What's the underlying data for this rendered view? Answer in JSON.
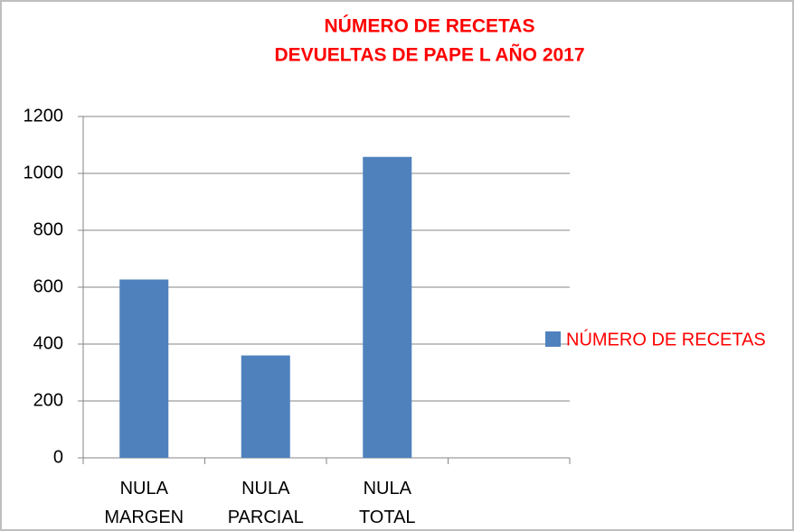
{
  "chart_data": {
    "type": "bar",
    "title": "NÚMERO DE RECETAS",
    "subtitle": "DEVUELTAS  DE PAPE L  AÑO 2017",
    "categories": [
      "NULA MARGEN",
      "NULA PARCIAL",
      "NULA TOTAL",
      null
    ],
    "series": [
      {
        "name": "NÚMERO DE RECETAS",
        "color": "#4f81bd",
        "values": [
          627,
          360,
          1058,
          null
        ]
      }
    ],
    "ylim": [
      0,
      1200
    ],
    "yticks": [
      0,
      200,
      400,
      600,
      800,
      1000,
      1200
    ],
    "grid": true,
    "legend": "right",
    "title_color": "#ff0000",
    "legend_text_color": "#ff0000"
  }
}
